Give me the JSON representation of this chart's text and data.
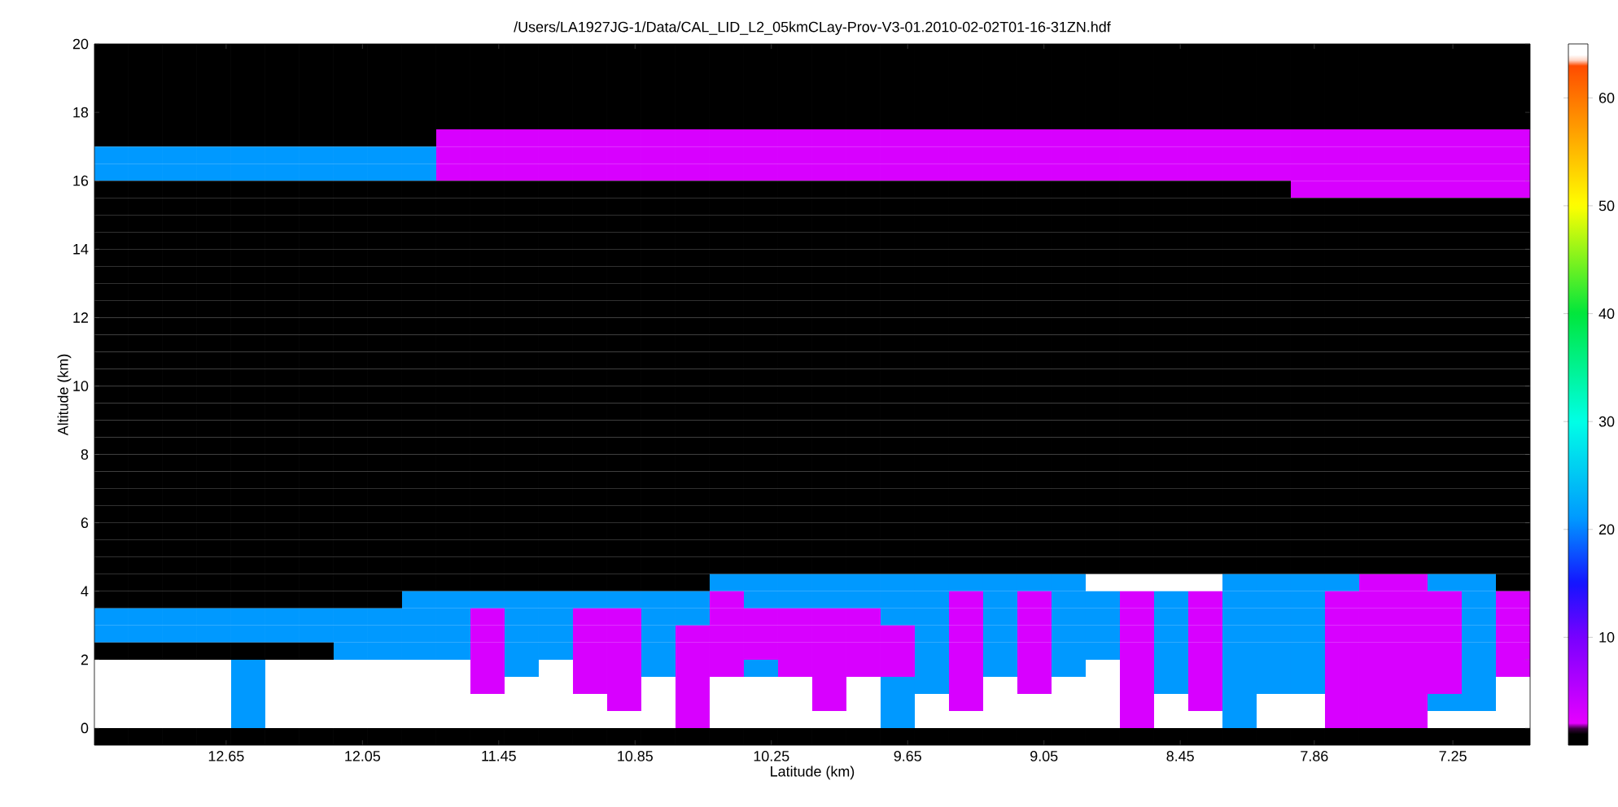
{
  "chart_data": {
    "type": "heatmap",
    "title": "/Users/LA1927JG-1/Data/CAL_LID_L2_05kmCLay-Prov-V3-01.2010-02-02T01-16-31ZN.hdf",
    "xlabel": "Latitude (km)",
    "ylabel": "Altitude (km)",
    "xlim": [
      13.23,
      6.91
    ],
    "xticks": [
      12.65,
      12.05,
      11.45,
      10.85,
      10.25,
      9.65,
      9.05,
      8.45,
      7.86,
      7.25
    ],
    "ylim": [
      -0.5,
      20
    ],
    "yticks": [
      0,
      2,
      4,
      6,
      8,
      10,
      12,
      14,
      16,
      18,
      20
    ],
    "clim": [
      0,
      65
    ],
    "cticks": [
      10,
      20,
      30,
      40,
      50,
      60
    ],
    "cells": [
      [
        0,
        0,
        0,
        0,
        0,
        0,
        0,
        0,
        0,
        0,
        0,
        0,
        0,
        0,
        0,
        0,
        0,
        0,
        0,
        0,
        0,
        0,
        0,
        0,
        0,
        0,
        0,
        0,
        0,
        0,
        0,
        0,
        0,
        0,
        0,
        0,
        0,
        0,
        0,
        0,
        0,
        0
      ],
      [
        0,
        0,
        0,
        0,
        0,
        0,
        0,
        0,
        0,
        0,
        0,
        0,
        0,
        0,
        0,
        0,
        0,
        0,
        0,
        0,
        0,
        0,
        0,
        0,
        0,
        0,
        0,
        0,
        0,
        0,
        0,
        0,
        0,
        0,
        0,
        0,
        0,
        0,
        0,
        0,
        0,
        0
      ],
      [
        0,
        0,
        0,
        0,
        0,
        0,
        0,
        0,
        0,
        0,
        0,
        0,
        0,
        0,
        0,
        0,
        0,
        0,
        0,
        0,
        0,
        0,
        0,
        0,
        0,
        0,
        0,
        0,
        0,
        0,
        0,
        0,
        0,
        0,
        0,
        0,
        0,
        0,
        0,
        0,
        0,
        0
      ],
      [
        0,
        0,
        0,
        0,
        0,
        0,
        0,
        0,
        0,
        0,
        0,
        0,
        0,
        0,
        0,
        0,
        0,
        0,
        0,
        0,
        0,
        0,
        0,
        0,
        0,
        0,
        0,
        0,
        0,
        0,
        0,
        0,
        0,
        0,
        0,
        0,
        0,
        0,
        0,
        0,
        0,
        0
      ],
      [
        0,
        0,
        0,
        0,
        0,
        0,
        0,
        0,
        0,
        0,
        0,
        0,
        0,
        0,
        0,
        0,
        0,
        0,
        0,
        0,
        0,
        0,
        0,
        0,
        0,
        0,
        0,
        0,
        0,
        0,
        0,
        0,
        0,
        0,
        0,
        0,
        0,
        0,
        0,
        0,
        0,
        0
      ],
      [
        0,
        0,
        0,
        0,
        0,
        0,
        0,
        0,
        0,
        0,
        3,
        3,
        3,
        3,
        3,
        3,
        3,
        3,
        3,
        3,
        3,
        3,
        3,
        3,
        3,
        3,
        3,
        3,
        3,
        3,
        3,
        3,
        3,
        3,
        3,
        3,
        3,
        3,
        3,
        3,
        3,
        3
      ],
      [
        21,
        21,
        21,
        21,
        21,
        21,
        21,
        21,
        21,
        21,
        3,
        3,
        3,
        3,
        3,
        3,
        3,
        3,
        3,
        3,
        3,
        3,
        3,
        3,
        3,
        3,
        3,
        3,
        3,
        3,
        3,
        3,
        3,
        3,
        3,
        3,
        3,
        3,
        3,
        3,
        3,
        3
      ],
      [
        21,
        21,
        21,
        21,
        21,
        21,
        21,
        21,
        21,
        21,
        3,
        3,
        3,
        3,
        3,
        3,
        3,
        3,
        3,
        3,
        3,
        3,
        3,
        3,
        3,
        3,
        3,
        3,
        3,
        3,
        3,
        3,
        3,
        3,
        3,
        3,
        3,
        3,
        3,
        3,
        3,
        3
      ],
      [
        0,
        0,
        0,
        0,
        0,
        0,
        0,
        0,
        0,
        0,
        0,
        0,
        0,
        0,
        0,
        0,
        0,
        0,
        0,
        0,
        0,
        0,
        0,
        0,
        0,
        0,
        0,
        0,
        0,
        0,
        0,
        0,
        0,
        0,
        0,
        3,
        3,
        3,
        3,
        3,
        3,
        3
      ],
      [
        0,
        0,
        0,
        0,
        0,
        0,
        0,
        0,
        0,
        0,
        0,
        0,
        0,
        0,
        0,
        0,
        0,
        0,
        0,
        0,
        0,
        0,
        0,
        0,
        0,
        0,
        0,
        0,
        0,
        0,
        0,
        0,
        0,
        0,
        0,
        0,
        0,
        0,
        0,
        0,
        0,
        0
      ],
      [
        0,
        0,
        0,
        0,
        0,
        0,
        0,
        0,
        0,
        0,
        0,
        0,
        0,
        0,
        0,
        0,
        0,
        0,
        0,
        0,
        0,
        0,
        0,
        0,
        0,
        0,
        0,
        0,
        0,
        0,
        0,
        0,
        0,
        0,
        0,
        0,
        0,
        0,
        0,
        0,
        0,
        0
      ],
      [
        0,
        0,
        0,
        0,
        0,
        0,
        0,
        0,
        0,
        0,
        0,
        0,
        0,
        0,
        0,
        0,
        0,
        0,
        0,
        0,
        0,
        0,
        0,
        0,
        0,
        0,
        0,
        0,
        0,
        0,
        0,
        0,
        0,
        0,
        0,
        0,
        0,
        0,
        0,
        0,
        0,
        0
      ],
      [
        0,
        0,
        0,
        0,
        0,
        0,
        0,
        0,
        0,
        0,
        0,
        0,
        0,
        0,
        0,
        0,
        0,
        0,
        0,
        0,
        0,
        0,
        0,
        0,
        0,
        0,
        0,
        0,
        0,
        0,
        0,
        0,
        0,
        0,
        0,
        0,
        0,
        0,
        0,
        0,
        0,
        0
      ],
      [
        0,
        0,
        0,
        0,
        0,
        0,
        0,
        0,
        0,
        0,
        0,
        0,
        0,
        0,
        0,
        0,
        0,
        0,
        0,
        0,
        0,
        0,
        0,
        0,
        0,
        0,
        0,
        0,
        0,
        0,
        0,
        0,
        0,
        0,
        0,
        0,
        0,
        0,
        0,
        0,
        0,
        0
      ],
      [
        0,
        0,
        0,
        0,
        0,
        0,
        0,
        0,
        0,
        0,
        0,
        0,
        0,
        0,
        0,
        0,
        0,
        0,
        0,
        0,
        0,
        0,
        0,
        0,
        0,
        0,
        0,
        0,
        0,
        0,
        0,
        0,
        0,
        0,
        0,
        0,
        0,
        0,
        0,
        0,
        0,
        0
      ],
      [
        0,
        0,
        0,
        0,
        0,
        0,
        0,
        0,
        0,
        0,
        0,
        0,
        0,
        0,
        0,
        0,
        0,
        0,
        0,
        0,
        0,
        0,
        0,
        0,
        0,
        0,
        0,
        0,
        0,
        0,
        0,
        0,
        0,
        0,
        0,
        0,
        0,
        0,
        0,
        0,
        0,
        0
      ],
      [
        0,
        0,
        0,
        0,
        0,
        0,
        0,
        0,
        0,
        0,
        0,
        0,
        0,
        0,
        0,
        0,
        0,
        0,
        0,
        0,
        0,
        0,
        0,
        0,
        0,
        0,
        0,
        0,
        0,
        0,
        0,
        0,
        0,
        0,
        0,
        0,
        0,
        0,
        0,
        0,
        0,
        0
      ],
      [
        0,
        0,
        0,
        0,
        0,
        0,
        0,
        0,
        0,
        0,
        0,
        0,
        0,
        0,
        0,
        0,
        0,
        0,
        0,
        0,
        0,
        0,
        0,
        0,
        0,
        0,
        0,
        0,
        0,
        0,
        0,
        0,
        0,
        0,
        0,
        0,
        0,
        0,
        0,
        0,
        0,
        0
      ],
      [
        0,
        0,
        0,
        0,
        0,
        0,
        0,
        0,
        0,
        0,
        0,
        0,
        0,
        0,
        0,
        0,
        0,
        0,
        0,
        0,
        0,
        0,
        0,
        0,
        0,
        0,
        0,
        0,
        0,
        0,
        0,
        0,
        0,
        0,
        0,
        0,
        0,
        0,
        0,
        0,
        0,
        0
      ],
      [
        0,
        0,
        0,
        0,
        0,
        0,
        0,
        0,
        0,
        0,
        0,
        0,
        0,
        0,
        0,
        0,
        0,
        0,
        0,
        0,
        0,
        0,
        0,
        0,
        0,
        0,
        0,
        0,
        0,
        0,
        0,
        0,
        0,
        0,
        0,
        0,
        0,
        0,
        0,
        0,
        0,
        0
      ],
      [
        0,
        0,
        0,
        0,
        0,
        0,
        0,
        0,
        0,
        0,
        0,
        0,
        0,
        0,
        0,
        0,
        0,
        0,
        0,
        0,
        0,
        0,
        0,
        0,
        0,
        0,
        0,
        0,
        0,
        0,
        0,
        0,
        0,
        0,
        0,
        0,
        0,
        0,
        0,
        0,
        0,
        0
      ],
      [
        0,
        0,
        0,
        0,
        0,
        0,
        0,
        0,
        0,
        0,
        0,
        0,
        0,
        0,
        0,
        0,
        0,
        0,
        0,
        0,
        0,
        0,
        0,
        0,
        0,
        0,
        0,
        0,
        0,
        0,
        0,
        0,
        0,
        0,
        0,
        0,
        0,
        0,
        0,
        0,
        0,
        0
      ],
      [
        0,
        0,
        0,
        0,
        0,
        0,
        0,
        0,
        0,
        0,
        0,
        0,
        0,
        0,
        0,
        0,
        0,
        0,
        0,
        0,
        0,
        0,
        0,
        0,
        0,
        0,
        0,
        0,
        0,
        0,
        0,
        0,
        0,
        0,
        0,
        0,
        0,
        0,
        0,
        0,
        0,
        0
      ],
      [
        0,
        0,
        0,
        0,
        0,
        0,
        0,
        0,
        0,
        0,
        0,
        0,
        0,
        0,
        0,
        0,
        0,
        0,
        0,
        0,
        0,
        0,
        0,
        0,
        0,
        0,
        0,
        0,
        0,
        0,
        0,
        0,
        0,
        0,
        0,
        0,
        0,
        0,
        0,
        0,
        0,
        0
      ],
      [
        0,
        0,
        0,
        0,
        0,
        0,
        0,
        0,
        0,
        0,
        0,
        0,
        0,
        0,
        0,
        0,
        0,
        0,
        0,
        0,
        0,
        0,
        0,
        0,
        0,
        0,
        0,
        0,
        0,
        0,
        0,
        0,
        0,
        0,
        0,
        0,
        0,
        0,
        0,
        0,
        0,
        0
      ],
      [
        0,
        0,
        0,
        0,
        0,
        0,
        0,
        0,
        0,
        0,
        0,
        0,
        0,
        0,
        0,
        0,
        0,
        0,
        0,
        0,
        0,
        0,
        0,
        0,
        0,
        0,
        0,
        0,
        0,
        0,
        0,
        0,
        0,
        0,
        0,
        0,
        0,
        0,
        0,
        0,
        0,
        0
      ],
      [
        0,
        0,
        0,
        0,
        0,
        0,
        0,
        0,
        0,
        0,
        0,
        0,
        0,
        0,
        0,
        0,
        0,
        0,
        0,
        0,
        0,
        0,
        0,
        0,
        0,
        0,
        0,
        0,
        0,
        0,
        0,
        0,
        0,
        0,
        0,
        0,
        0,
        0,
        0,
        0,
        0,
        0
      ],
      [
        0,
        0,
        0,
        0,
        0,
        0,
        0,
        0,
        0,
        0,
        0,
        0,
        0,
        0,
        0,
        0,
        0,
        0,
        0,
        0,
        0,
        0,
        0,
        0,
        0,
        0,
        0,
        0,
        0,
        0,
        0,
        0,
        0,
        0,
        0,
        0,
        0,
        0,
        0,
        0,
        0,
        0
      ],
      [
        0,
        0,
        0,
        0,
        0,
        0,
        0,
        0,
        0,
        0,
        0,
        0,
        0,
        0,
        0,
        0,
        0,
        0,
        0,
        0,
        0,
        0,
        0,
        0,
        0,
        0,
        0,
        0,
        0,
        0,
        0,
        0,
        0,
        0,
        0,
        0,
        0,
        0,
        0,
        0,
        0,
        0
      ],
      [
        0,
        0,
        0,
        0,
        0,
        0,
        0,
        0,
        0,
        0,
        0,
        0,
        0,
        0,
        0,
        0,
        0,
        0,
        0,
        0,
        0,
        0,
        0,
        0,
        0,
        0,
        0,
        0,
        0,
        0,
        0,
        0,
        0,
        0,
        0,
        0,
        0,
        0,
        0,
        0,
        0,
        0
      ],
      [
        0,
        0,
        0,
        0,
        0,
        0,
        0,
        0,
        0,
        0,
        0,
        0,
        0,
        0,
        0,
        0,
        0,
        0,
        0,
        0,
        0,
        0,
        0,
        0,
        0,
        0,
        0,
        0,
        0,
        0,
        0,
        0,
        0,
        0,
        0,
        0,
        0,
        0,
        0,
        0,
        0,
        0
      ],
      [
        0,
        0,
        0,
        0,
        0,
        0,
        0,
        0,
        0,
        0,
        0,
        0,
        0,
        0,
        0,
        0,
        0,
        0,
        21,
        21,
        21,
        21,
        21,
        21,
        21,
        21,
        21,
        21,
        21,
        65,
        65,
        65,
        65,
        21,
        21,
        21,
        21,
        3,
        3,
        21,
        21,
        0
      ],
      [
        0,
        0,
        0,
        0,
        0,
        0,
        0,
        0,
        0,
        21,
        21,
        21,
        21,
        21,
        21,
        21,
        21,
        21,
        3,
        21,
        21,
        21,
        21,
        21,
        21,
        3,
        21,
        3,
        21,
        21,
        3,
        21,
        3,
        21,
        21,
        21,
        3,
        3,
        3,
        3,
        21,
        3
      ],
      [
        21,
        21,
        21,
        21,
        21,
        21,
        21,
        21,
        21,
        21,
        21,
        3,
        21,
        21,
        3,
        3,
        21,
        21,
        3,
        3,
        3,
        3,
        3,
        21,
        21,
        3,
        21,
        3,
        21,
        21,
        3,
        21,
        3,
        21,
        21,
        21,
        3,
        3,
        3,
        3,
        21,
        3
      ],
      [
        21,
        21,
        21,
        21,
        21,
        21,
        21,
        21,
        21,
        21,
        21,
        3,
        21,
        21,
        3,
        3,
        21,
        3,
        3,
        3,
        3,
        3,
        3,
        3,
        21,
        3,
        21,
        3,
        21,
        21,
        3,
        21,
        3,
        21,
        21,
        21,
        3,
        3,
        3,
        3,
        21,
        3
      ],
      [
        0,
        0,
        0,
        0,
        0,
        0,
        0,
        21,
        21,
        21,
        21,
        3,
        21,
        21,
        3,
        3,
        21,
        3,
        3,
        3,
        3,
        3,
        3,
        3,
        21,
        3,
        21,
        3,
        21,
        21,
        3,
        21,
        3,
        21,
        21,
        21,
        3,
        3,
        3,
        3,
        21,
        3
      ],
      [
        65,
        65,
        65,
        65,
        21,
        65,
        65,
        65,
        65,
        65,
        65,
        3,
        21,
        65,
        3,
        3,
        21,
        3,
        3,
        21,
        3,
        3,
        3,
        3,
        21,
        3,
        21,
        3,
        21,
        65,
        3,
        21,
        3,
        21,
        21,
        21,
        3,
        3,
        3,
        3,
        21,
        3
      ],
      [
        65,
        65,
        65,
        65,
        21,
        65,
        65,
        65,
        65,
        65,
        65,
        3,
        65,
        65,
        3,
        3,
        65,
        3,
        65,
        65,
        65,
        3,
        65,
        21,
        21,
        3,
        65,
        3,
        65,
        65,
        3,
        21,
        3,
        21,
        21,
        21,
        3,
        3,
        3,
        3,
        21,
        65
      ],
      [
        65,
        65,
        65,
        65,
        21,
        65,
        65,
        65,
        65,
        65,
        65,
        65,
        65,
        65,
        65,
        3,
        65,
        3,
        65,
        65,
        65,
        3,
        65,
        21,
        65,
        3,
        65,
        65,
        65,
        65,
        3,
        65,
        3,
        21,
        65,
        65,
        3,
        3,
        3,
        21,
        21,
        65
      ],
      [
        65,
        65,
        65,
        65,
        21,
        65,
        65,
        65,
        65,
        65,
        65,
        65,
        65,
        65,
        65,
        65,
        65,
        3,
        65,
        65,
        65,
        65,
        65,
        21,
        65,
        65,
        65,
        65,
        65,
        65,
        3,
        65,
        65,
        21,
        65,
        65,
        3,
        3,
        3,
        65,
        65,
        65
      ],
      [
        0,
        0,
        0,
        0,
        0,
        0,
        0,
        0,
        0,
        0,
        0,
        0,
        0,
        0,
        0,
        0,
        0,
        0,
        0,
        0,
        0,
        0,
        0,
        0,
        0,
        0,
        0,
        0,
        0,
        0,
        0,
        0,
        0,
        0,
        0,
        0,
        0,
        0,
        0,
        0,
        0,
        0
      ]
    ]
  }
}
